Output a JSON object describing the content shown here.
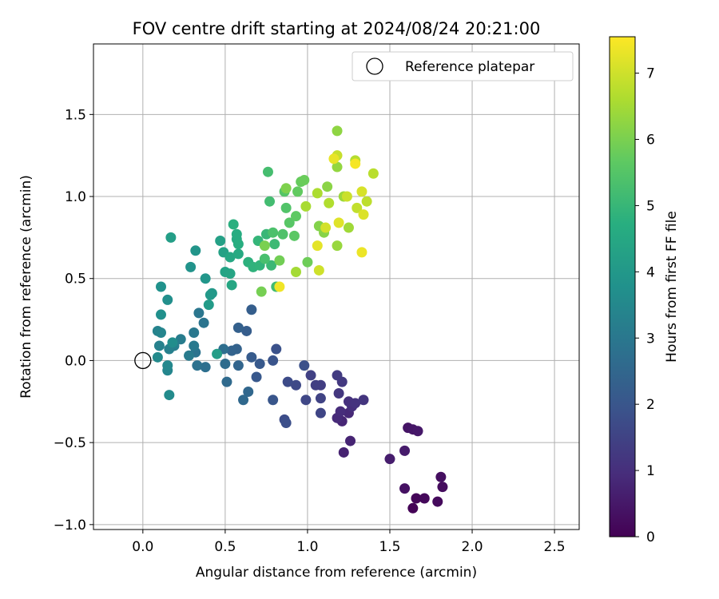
{
  "chart_data": {
    "type": "scatter",
    "title": "FOV centre drift starting at 2024/08/24 20:21:00",
    "xlabel": "Angular distance from reference (arcmin)",
    "ylabel": "Rotation from reference (arcmin)",
    "xlim": [
      -0.3,
      2.65
    ],
    "ylim": [
      -1.03,
      1.93
    ],
    "xticks": [
      0.0,
      0.5,
      1.0,
      1.5,
      2.0,
      2.5
    ],
    "xtick_labels": [
      "0.0",
      "0.5",
      "1.0",
      "1.5",
      "2.0",
      "2.5"
    ],
    "yticks": [
      -1.0,
      -0.5,
      0.0,
      0.5,
      1.0,
      1.5
    ],
    "ytick_labels": [
      "−1.0",
      "−0.5",
      "0.0",
      "0.5",
      "1.0",
      "1.5"
    ],
    "grid": true,
    "legend": {
      "position": "top-right",
      "label": "Reference platepar"
    },
    "reference_point": {
      "x": 0.0,
      "y": 0.0
    },
    "colorbar": {
      "label": "Hours from first FF file",
      "range": [
        0,
        7.55
      ],
      "ticks": [
        0,
        1,
        2,
        3,
        4,
        5,
        6,
        7
      ],
      "tick_labels": [
        "0",
        "1",
        "2",
        "3",
        "4",
        "5",
        "6",
        "7"
      ],
      "colormap": "viridis"
    },
    "points": [
      {
        "x": 1.64,
        "y": -0.9,
        "c": 0.05
      },
      {
        "x": 1.66,
        "y": -0.84,
        "c": 0.1
      },
      {
        "x": 1.71,
        "y": -0.84,
        "c": 0.15
      },
      {
        "x": 1.79,
        "y": -0.86,
        "c": 0.2
      },
      {
        "x": 1.82,
        "y": -0.77,
        "c": 0.25
      },
      {
        "x": 1.81,
        "y": -0.71,
        "c": 0.3
      },
      {
        "x": 1.59,
        "y": -0.78,
        "c": 0.35
      },
      {
        "x": 1.61,
        "y": -0.41,
        "c": 0.4
      },
      {
        "x": 1.64,
        "y": -0.42,
        "c": 0.45
      },
      {
        "x": 1.67,
        "y": -0.43,
        "c": 0.5
      },
      {
        "x": 1.59,
        "y": -0.55,
        "c": 0.55
      },
      {
        "x": 1.5,
        "y": -0.6,
        "c": 0.6
      },
      {
        "x": 1.22,
        "y": -0.56,
        "c": 0.7
      },
      {
        "x": 1.26,
        "y": -0.49,
        "c": 0.75
      },
      {
        "x": 1.21,
        "y": -0.37,
        "c": 0.8
      },
      {
        "x": 1.25,
        "y": -0.32,
        "c": 0.85
      },
      {
        "x": 1.18,
        "y": -0.35,
        "c": 0.9
      },
      {
        "x": 1.2,
        "y": -0.31,
        "c": 0.95
      },
      {
        "x": 1.27,
        "y": -0.28,
        "c": 1.0
      },
      {
        "x": 1.25,
        "y": -0.25,
        "c": 1.05
      },
      {
        "x": 1.29,
        "y": -0.26,
        "c": 1.1
      },
      {
        "x": 1.34,
        "y": -0.24,
        "c": 1.15
      },
      {
        "x": 1.19,
        "y": -0.2,
        "c": 1.2
      },
      {
        "x": 1.21,
        "y": -0.13,
        "c": 1.25
      },
      {
        "x": 1.18,
        "y": -0.09,
        "c": 1.3
      },
      {
        "x": 1.08,
        "y": -0.15,
        "c": 1.35
      },
      {
        "x": 1.05,
        "y": -0.15,
        "c": 1.4
      },
      {
        "x": 1.02,
        "y": -0.09,
        "c": 1.45
      },
      {
        "x": 1.08,
        "y": -0.23,
        "c": 1.5
      },
      {
        "x": 1.08,
        "y": -0.32,
        "c": 1.55
      },
      {
        "x": 0.99,
        "y": -0.24,
        "c": 1.6
      },
      {
        "x": 0.93,
        "y": -0.15,
        "c": 1.65
      },
      {
        "x": 0.88,
        "y": -0.13,
        "c": 1.7
      },
      {
        "x": 0.86,
        "y": -0.36,
        "c": 1.75
      },
      {
        "x": 0.87,
        "y": -0.38,
        "c": 1.8
      },
      {
        "x": 0.98,
        "y": -0.03,
        "c": 1.85
      },
      {
        "x": 0.81,
        "y": 0.07,
        "c": 1.9
      },
      {
        "x": 0.79,
        "y": 0.0,
        "c": 1.95
      },
      {
        "x": 0.79,
        "y": -0.24,
        "c": 2.0
      },
      {
        "x": 0.69,
        "y": -0.1,
        "c": 2.05
      },
      {
        "x": 0.71,
        "y": -0.02,
        "c": 2.1
      },
      {
        "x": 0.66,
        "y": 0.02,
        "c": 2.15
      },
      {
        "x": 0.63,
        "y": 0.18,
        "c": 2.2
      },
      {
        "x": 0.66,
        "y": 0.31,
        "c": 2.25
      },
      {
        "x": 0.58,
        "y": 0.2,
        "c": 2.3
      },
      {
        "x": 0.57,
        "y": 0.07,
        "c": 2.35
      },
      {
        "x": 0.54,
        "y": 0.06,
        "c": 2.4
      },
      {
        "x": 0.58,
        "y": -0.03,
        "c": 2.45
      },
      {
        "x": 0.64,
        "y": -0.19,
        "c": 2.5
      },
      {
        "x": 0.61,
        "y": -0.24,
        "c": 2.55
      },
      {
        "x": 0.51,
        "y": -0.13,
        "c": 2.6
      },
      {
        "x": 0.5,
        "y": -0.02,
        "c": 2.65
      },
      {
        "x": 0.49,
        "y": 0.07,
        "c": 2.7
      },
      {
        "x": 0.38,
        "y": -0.04,
        "c": 2.75
      },
      {
        "x": 0.33,
        "y": -0.03,
        "c": 2.8
      },
      {
        "x": 0.32,
        "y": 0.05,
        "c": 2.85
      },
      {
        "x": 0.37,
        "y": 0.23,
        "c": 2.9
      },
      {
        "x": 0.34,
        "y": 0.29,
        "c": 2.95
      },
      {
        "x": 0.31,
        "y": 0.17,
        "c": 3.0
      },
      {
        "x": 0.31,
        "y": 0.09,
        "c": 3.05
      },
      {
        "x": 0.28,
        "y": 0.03,
        "c": 3.1
      },
      {
        "x": 0.23,
        "y": 0.13,
        "c": 3.15
      },
      {
        "x": 0.19,
        "y": 0.09,
        "c": 3.2
      },
      {
        "x": 0.16,
        "y": 0.07,
        "c": 3.25
      },
      {
        "x": 0.1,
        "y": 0.09,
        "c": 3.3
      },
      {
        "x": 0.09,
        "y": 0.18,
        "c": 3.35
      },
      {
        "x": 0.11,
        "y": 0.17,
        "c": 3.4
      },
      {
        "x": 0.15,
        "y": -0.06,
        "c": 3.45
      },
      {
        "x": 0.15,
        "y": -0.03,
        "c": 3.5
      },
      {
        "x": 0.09,
        "y": 0.02,
        "c": 3.55
      },
      {
        "x": 0.16,
        "y": -0.21,
        "c": 3.6
      },
      {
        "x": 0.18,
        "y": 0.11,
        "c": 3.65
      },
      {
        "x": 0.15,
        "y": 0.37,
        "c": 3.7
      },
      {
        "x": 0.11,
        "y": 0.28,
        "c": 3.75
      },
      {
        "x": 0.11,
        "y": 0.45,
        "c": 3.8
      },
      {
        "x": 0.29,
        "y": 0.57,
        "c": 3.85
      },
      {
        "x": 0.32,
        "y": 0.67,
        "c": 3.9
      },
      {
        "x": 0.38,
        "y": 0.5,
        "c": 3.95
      },
      {
        "x": 0.42,
        "y": 0.41,
        "c": 4.0
      },
      {
        "x": 0.41,
        "y": 0.4,
        "c": 4.05
      },
      {
        "x": 0.4,
        "y": 0.34,
        "c": 4.1
      },
      {
        "x": 0.45,
        "y": 0.04,
        "c": 4.15
      },
      {
        "x": 0.17,
        "y": 0.75,
        "c": 4.2
      },
      {
        "x": 0.47,
        "y": 0.73,
        "c": 4.25
      },
      {
        "x": 0.49,
        "y": 0.66,
        "c": 4.3
      },
      {
        "x": 0.5,
        "y": 0.54,
        "c": 4.35
      },
      {
        "x": 0.53,
        "y": 0.53,
        "c": 4.4
      },
      {
        "x": 0.54,
        "y": 0.46,
        "c": 4.45
      },
      {
        "x": 0.53,
        "y": 0.63,
        "c": 4.5
      },
      {
        "x": 0.58,
        "y": 0.65,
        "c": 4.55
      },
      {
        "x": 0.57,
        "y": 0.74,
        "c": 4.6
      },
      {
        "x": 0.57,
        "y": 0.77,
        "c": 4.65
      },
      {
        "x": 0.58,
        "y": 0.71,
        "c": 4.7
      },
      {
        "x": 0.55,
        "y": 0.83,
        "c": 4.75
      },
      {
        "x": 0.64,
        "y": 0.6,
        "c": 4.8
      },
      {
        "x": 0.67,
        "y": 0.57,
        "c": 4.85
      },
      {
        "x": 0.71,
        "y": 0.58,
        "c": 4.9
      },
      {
        "x": 0.7,
        "y": 0.73,
        "c": 4.95
      },
      {
        "x": 0.75,
        "y": 0.77,
        "c": 5.0
      },
      {
        "x": 0.78,
        "y": 0.58,
        "c": 5.05
      },
      {
        "x": 0.8,
        "y": 0.71,
        "c": 5.1
      },
      {
        "x": 0.81,
        "y": 0.45,
        "c": 5.15
      },
      {
        "x": 0.77,
        "y": 0.97,
        "c": 5.2
      },
      {
        "x": 0.76,
        "y": 1.15,
        "c": 5.25
      },
      {
        "x": 0.74,
        "y": 0.62,
        "c": 5.3
      },
      {
        "x": 0.79,
        "y": 0.78,
        "c": 5.35
      },
      {
        "x": 0.85,
        "y": 0.77,
        "c": 5.4
      },
      {
        "x": 0.87,
        "y": 0.93,
        "c": 5.45
      },
      {
        "x": 0.86,
        "y": 1.03,
        "c": 5.5
      },
      {
        "x": 0.89,
        "y": 0.84,
        "c": 5.55
      },
      {
        "x": 0.92,
        "y": 0.76,
        "c": 5.6
      },
      {
        "x": 0.93,
        "y": 0.88,
        "c": 5.65
      },
      {
        "x": 0.94,
        "y": 1.03,
        "c": 5.7
      },
      {
        "x": 0.96,
        "y": 1.09,
        "c": 5.75
      },
      {
        "x": 0.98,
        "y": 1.1,
        "c": 5.8
      },
      {
        "x": 1.0,
        "y": 0.6,
        "c": 5.85
      },
      {
        "x": 0.83,
        "y": 0.61,
        "c": 5.9
      },
      {
        "x": 0.72,
        "y": 0.42,
        "c": 5.95
      },
      {
        "x": 0.74,
        "y": 0.7,
        "c": 6.0
      },
      {
        "x": 0.87,
        "y": 1.05,
        "c": 6.05
      },
      {
        "x": 1.07,
        "y": 0.82,
        "c": 6.1
      },
      {
        "x": 1.1,
        "y": 0.78,
        "c": 6.15
      },
      {
        "x": 1.12,
        "y": 1.06,
        "c": 6.2
      },
      {
        "x": 1.18,
        "y": 1.4,
        "c": 6.25
      },
      {
        "x": 1.18,
        "y": 1.18,
        "c": 6.3
      },
      {
        "x": 1.18,
        "y": 0.7,
        "c": 6.35
      },
      {
        "x": 1.22,
        "y": 1.0,
        "c": 6.4
      },
      {
        "x": 1.25,
        "y": 0.81,
        "c": 6.45
      },
      {
        "x": 0.93,
        "y": 0.54,
        "c": 6.5
      },
      {
        "x": 0.99,
        "y": 0.94,
        "c": 6.55
      },
      {
        "x": 1.06,
        "y": 1.02,
        "c": 6.6
      },
      {
        "x": 1.13,
        "y": 0.96,
        "c": 6.65
      },
      {
        "x": 1.29,
        "y": 1.22,
        "c": 6.7
      },
      {
        "x": 1.4,
        "y": 1.14,
        "c": 6.75
      },
      {
        "x": 1.36,
        "y": 0.97,
        "c": 6.8
      },
      {
        "x": 1.3,
        "y": 0.93,
        "c": 6.85
      },
      {
        "x": 1.18,
        "y": 1.25,
        "c": 6.9
      },
      {
        "x": 1.24,
        "y": 1.0,
        "c": 6.95
      },
      {
        "x": 1.07,
        "y": 0.55,
        "c": 7.0
      },
      {
        "x": 1.11,
        "y": 0.81,
        "c": 7.05
      },
      {
        "x": 1.33,
        "y": 1.03,
        "c": 7.1
      },
      {
        "x": 1.34,
        "y": 0.89,
        "c": 7.15
      },
      {
        "x": 1.19,
        "y": 0.84,
        "c": 7.2
      },
      {
        "x": 1.06,
        "y": 0.7,
        "c": 7.25
      },
      {
        "x": 1.16,
        "y": 1.23,
        "c": 7.3
      },
      {
        "x": 1.33,
        "y": 0.66,
        "c": 7.35
      },
      {
        "x": 0.83,
        "y": 0.45,
        "c": 7.4
      },
      {
        "x": 1.29,
        "y": 1.2,
        "c": 7.45
      }
    ]
  }
}
